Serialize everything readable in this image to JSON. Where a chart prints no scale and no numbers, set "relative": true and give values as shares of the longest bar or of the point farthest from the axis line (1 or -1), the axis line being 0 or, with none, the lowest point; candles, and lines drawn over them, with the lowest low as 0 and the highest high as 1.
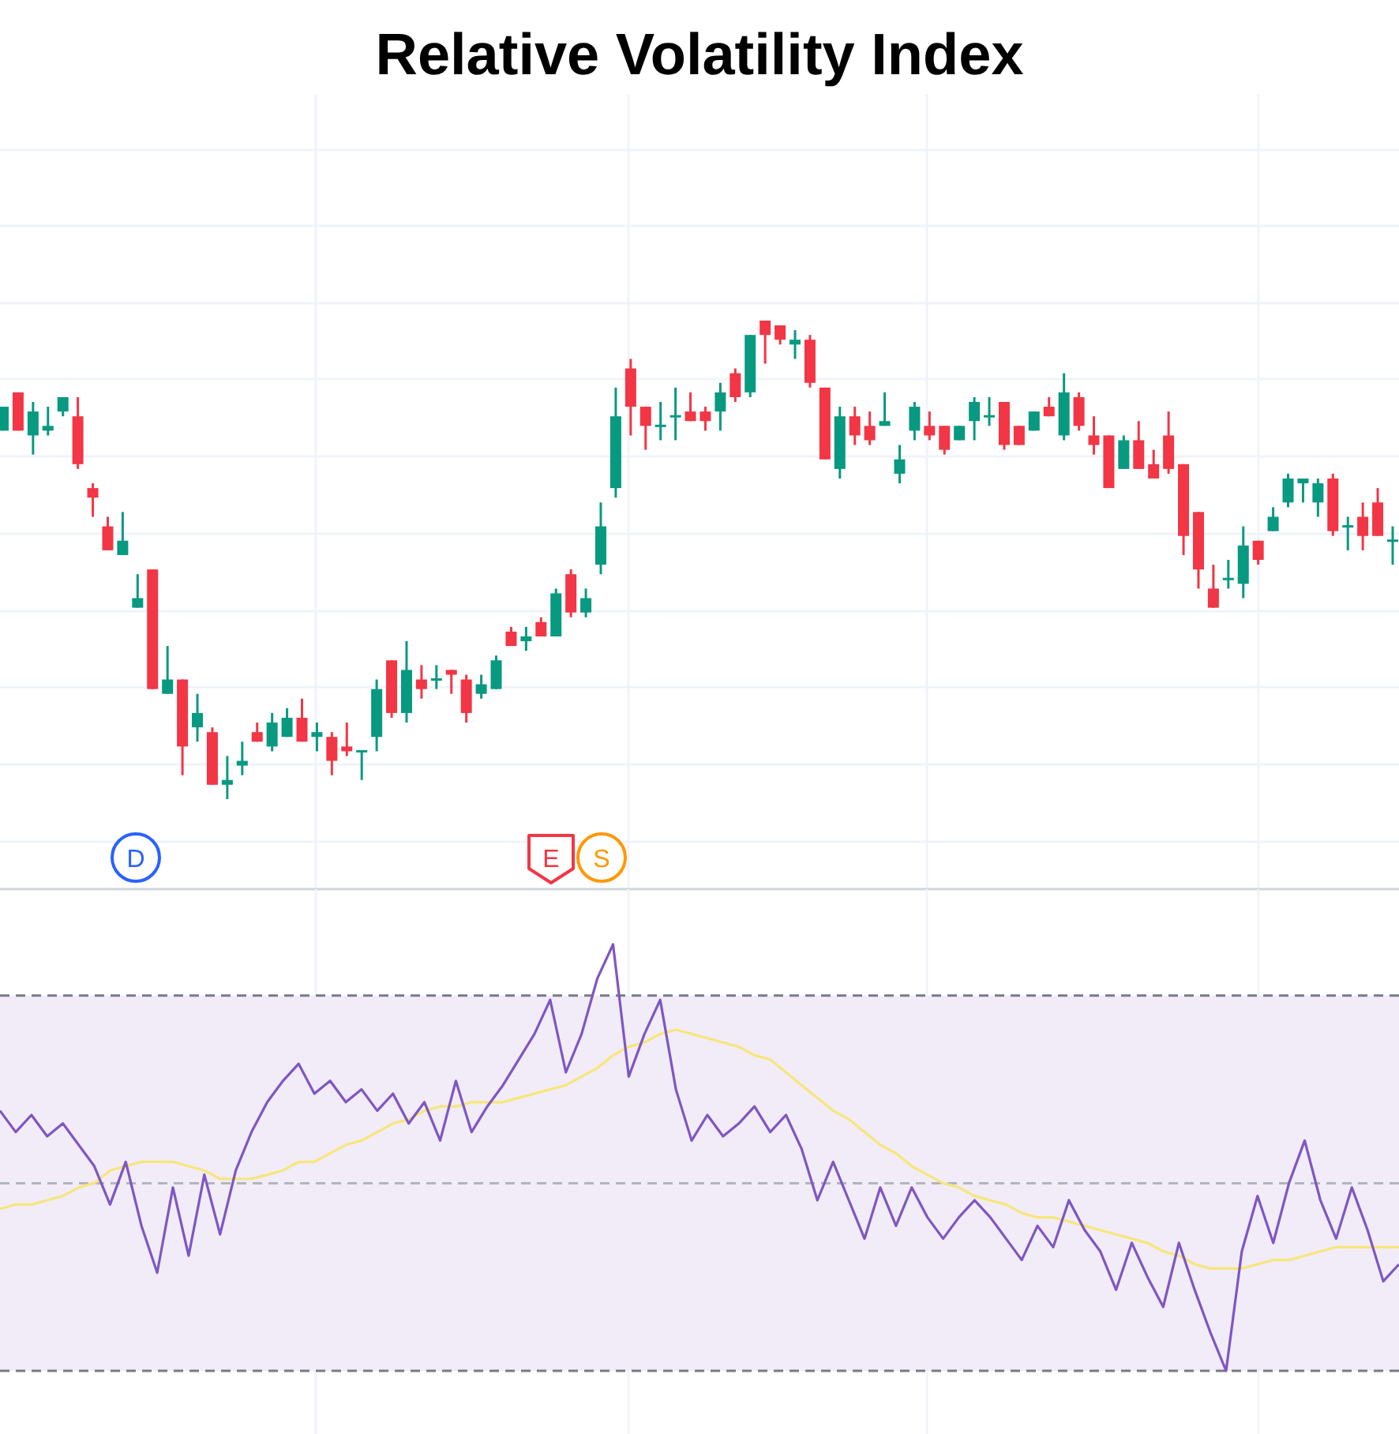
{
  "chart_data": [
    {
      "type": "candlestick",
      "title": "Relative Volatility Index",
      "relative": true,
      "grid": true,
      "annotations": [
        "D",
        "E",
        "S"
      ],
      "categories": [
        null,
        null,
        null,
        null,
        null,
        null,
        null,
        null,
        null,
        null,
        null,
        null,
        null,
        null,
        null,
        null,
        null,
        null,
        null,
        null,
        null,
        null,
        null,
        null,
        null,
        null,
        null,
        null,
        null,
        null,
        null,
        null,
        null,
        null,
        null,
        null,
        null,
        null,
        null,
        null,
        null,
        null,
        null,
        null,
        null,
        null,
        null,
        null,
        null,
        null,
        null,
        null,
        null,
        null,
        null,
        null,
        null,
        null,
        null,
        null,
        null,
        null,
        null,
        null,
        null,
        null,
        null,
        null,
        null,
        null,
        null,
        null,
        null,
        null,
        null,
        null,
        null,
        null,
        null,
        null,
        null,
        null,
        null,
        null,
        null,
        null,
        null,
        null,
        null,
        null,
        null,
        null,
        null,
        null
      ],
      "ohlc": [
        [
          0.77,
          0.82,
          0.77,
          0.82
        ],
        [
          0.85,
          0.85,
          0.77,
          0.77
        ],
        [
          0.76,
          0.83,
          0.72,
          0.81
        ],
        [
          0.77,
          0.82,
          0.76,
          0.78
        ],
        [
          0.81,
          0.84,
          0.8,
          0.84
        ],
        [
          0.8,
          0.84,
          0.69,
          0.7
        ],
        [
          0.65,
          0.66,
          0.59,
          0.63
        ],
        [
          0.57,
          0.59,
          0.52,
          0.52
        ],
        [
          0.51,
          0.6,
          0.51,
          0.54
        ],
        [
          0.4,
          0.47,
          0.4,
          0.42
        ],
        [
          0.48,
          0.48,
          0.23,
          0.23
        ],
        [
          0.22,
          0.32,
          0.22,
          0.25
        ],
        [
          0.25,
          0.25,
          0.05,
          0.11
        ],
        [
          0.15,
          0.22,
          0.12,
          0.18
        ],
        [
          0.14,
          0.15,
          0.03,
          0.03
        ],
        [
          0.03,
          0.09,
          0,
          0.04
        ],
        [
          0.07,
          0.12,
          0.05,
          0.08
        ],
        [
          0.14,
          0.16,
          0.12,
          0.12
        ],
        [
          0.11,
          0.18,
          0.1,
          0.16
        ],
        [
          0.13,
          0.19,
          0.13,
          0.17
        ],
        [
          0.17,
          0.21,
          0.12,
          0.12
        ],
        [
          0.13,
          0.16,
          0.1,
          0.14
        ],
        [
          0.13,
          0.14,
          0.05,
          0.08
        ],
        [
          0.11,
          0.16,
          0.09,
          0.1
        ],
        [
          0.1,
          0.1,
          0.04,
          0.1
        ],
        [
          0.13,
          0.25,
          0.1,
          0.23
        ],
        [
          0.29,
          0.29,
          0.17,
          0.18
        ],
        [
          0.18,
          0.33,
          0.16,
          0.27
        ],
        [
          0.25,
          0.28,
          0.21,
          0.23
        ],
        [
          0.25,
          0.28,
          0.23,
          0.25
        ],
        [
          0.27,
          0.27,
          0.22,
          0.26
        ],
        [
          0.25,
          0.26,
          0.16,
          0.18
        ],
        [
          0.22,
          0.26,
          0.21,
          0.24
        ],
        [
          0.23,
          0.3,
          0.23,
          0.29
        ],
        [
          0.35,
          0.36,
          0.32,
          0.32
        ],
        [
          0.33,
          0.36,
          0.31,
          0.34
        ],
        [
          0.37,
          0.38,
          0.34,
          0.34
        ],
        [
          0.34,
          0.44,
          0.34,
          0.43
        ],
        [
          0.47,
          0.48,
          0.38,
          0.39
        ],
        [
          0.39,
          0.44,
          0.38,
          0.42
        ],
        [
          0.49,
          0.62,
          0.47,
          0.57
        ],
        [
          0.65,
          0.86,
          0.63,
          0.8
        ],
        [
          0.9,
          0.92,
          0.76,
          0.82
        ],
        [
          0.82,
          0.82,
          0.73,
          0.78
        ],
        [
          0.78,
          0.83,
          0.75,
          0.78
        ],
        [
          0.8,
          0.86,
          0.75,
          0.8
        ],
        [
          0.81,
          0.85,
          0.79,
          0.79
        ],
        [
          0.81,
          0.82,
          0.77,
          0.79
        ],
        [
          0.81,
          0.87,
          0.77,
          0.85
        ],
        [
          0.89,
          0.9,
          0.83,
          0.84
        ],
        [
          0.85,
          0.97,
          0.84,
          0.97
        ],
        [
          1,
          1,
          0.91,
          0.97
        ],
        [
          0.99,
          0.99,
          0.95,
          0.96
        ],
        [
          0.95,
          0.98,
          0.92,
          0.96
        ],
        [
          0.96,
          0.97,
          0.86,
          0.87
        ],
        [
          0.86,
          0.86,
          0.71,
          0.71
        ],
        [
          0.69,
          0.82,
          0.67,
          0.8
        ],
        [
          0.8,
          0.82,
          0.74,
          0.76
        ],
        [
          0.78,
          0.81,
          0.74,
          0.75
        ],
        [
          0.78,
          0.85,
          0.78,
          0.79
        ],
        [
          0.68,
          0.74,
          0.66,
          0.71
        ],
        [
          0.77,
          0.83,
          0.75,
          0.82
        ],
        [
          0.78,
          0.81,
          0.75,
          0.76
        ],
        [
          0.78,
          0.78,
          0.72,
          0.73
        ],
        [
          0.75,
          0.78,
          0.75,
          0.78
        ],
        [
          0.79,
          0.84,
          0.75,
          0.83
        ],
        [
          0.8,
          0.84,
          0.78,
          0.8
        ],
        [
          0.83,
          0.83,
          0.73,
          0.74
        ],
        [
          0.78,
          0.78,
          0.74,
          0.74
        ],
        [
          0.77,
          0.81,
          0.77,
          0.81
        ],
        [
          0.82,
          0.84,
          0.8,
          0.8
        ],
        [
          0.76,
          0.89,
          0.75,
          0.85
        ],
        [
          0.84,
          0.85,
          0.77,
          0.78
        ],
        [
          0.76,
          0.8,
          0.72,
          0.74
        ],
        [
          0.76,
          0.76,
          0.65,
          0.65
        ],
        [
          0.69,
          0.76,
          0.69,
          0.75
        ],
        [
          0.75,
          0.79,
          0.69,
          0.69
        ],
        [
          0.7,
          0.73,
          0.67,
          0.67
        ],
        [
          0.76,
          0.81,
          0.68,
          0.69
        ],
        [
          0.7,
          0.7,
          0.51,
          0.55
        ],
        [
          0.6,
          0.6,
          0.44,
          0.48
        ],
        [
          0.44,
          0.49,
          0.4,
          0.4
        ],
        [
          0.46,
          0.5,
          0.44,
          0.46
        ],
        [
          0.45,
          0.57,
          0.42,
          0.53
        ],
        [
          0.54,
          0.54,
          0.49,
          0.5
        ],
        [
          0.56,
          0.61,
          0.56,
          0.59
        ],
        [
          0.62,
          0.68,
          0.61,
          0.67
        ],
        [
          0.66,
          0.67,
          0.62,
          0.67
        ],
        [
          0.62,
          0.67,
          0.59,
          0.66
        ],
        [
          0.67,
          0.68,
          0.55,
          0.56
        ],
        [
          0.57,
          0.59,
          0.52,
          0.57
        ],
        [
          0.59,
          0.62,
          0.52,
          0.55
        ],
        [
          0.62,
          0.65,
          0.55,
          0.55
        ],
        [
          0.54,
          0.57,
          0.49,
          0.54
        ]
      ]
    },
    {
      "type": "line",
      "relative": true,
      "grid": true,
      "line_style": "solid",
      "marker": "none",
      "categories": [
        null,
        null,
        null,
        null,
        null,
        null,
        null,
        null,
        null,
        null,
        null,
        null,
        null,
        null,
        null,
        null,
        null,
        null,
        null,
        null,
        null,
        null,
        null,
        null,
        null,
        null,
        null,
        null,
        null,
        null,
        null,
        null,
        null,
        null,
        null,
        null,
        null,
        null,
        null,
        null,
        null,
        null,
        null,
        null,
        null,
        null,
        null,
        null,
        null,
        null,
        null,
        null,
        null,
        null,
        null,
        null,
        null,
        null,
        null,
        null,
        null,
        null,
        null,
        null,
        null,
        null,
        null,
        null,
        null,
        null,
        null,
        null,
        null,
        null,
        null,
        null,
        null,
        null,
        null,
        null,
        null,
        null,
        null,
        null,
        null,
        null,
        null,
        null,
        null,
        null
      ],
      "bands": [
        {
          "axis": "y",
          "from": 0,
          "to": 0.88,
          "color": "#f1ecf8"
        }
      ],
      "ref_lines": [
        {
          "axis": "y",
          "value": 0.88,
          "color": "#787b86",
          "line_style": "dashed"
        },
        {
          "axis": "y",
          "value": 0.44,
          "color": "#b2b5be",
          "line_style": "dashed"
        },
        {
          "axis": "y",
          "value": 0,
          "color": "#787b86",
          "line_style": "dashed"
        }
      ],
      "series": [
        {
          "color": "#7e57c2",
          "values": [
            0.61,
            0.56,
            0.6,
            0.55,
            0.58,
            0.53,
            0.48,
            0.39,
            0.49,
            0.34,
            0.23,
            0.43,
            0.27,
            0.46,
            0.32,
            0.47,
            0.56,
            0.63,
            0.68,
            0.72,
            0.65,
            0.68,
            0.63,
            0.66,
            0.61,
            0.65,
            0.58,
            0.63,
            0.54,
            0.68,
            0.56,
            0.62,
            0.67,
            0.73,
            0.79,
            0.87,
            0.7,
            0.79,
            0.92,
            1,
            0.69,
            0.79,
            0.87,
            0.66,
            0.54,
            0.6,
            0.55,
            0.58,
            0.62,
            0.56,
            0.6,
            0.52,
            0.4,
            0.49,
            0.4,
            0.31,
            0.43,
            0.34,
            0.43,
            0.36,
            0.31,
            0.36,
            0.4,
            0.36,
            0.31,
            0.26,
            0.34,
            0.29,
            0.4,
            0.33,
            0.28,
            0.19,
            0.3,
            0.22,
            0.15,
            0.3,
            0.19,
            0.09,
            0,
            0.28,
            0.41,
            0.3,
            0.44,
            0.54,
            0.4,
            0.31,
            0.43,
            0.33,
            0.21,
            0.25
          ]
        },
        {
          "color": "#f7e67a",
          "values": [
            0.38,
            0.39,
            0.39,
            0.4,
            0.41,
            0.43,
            0.44,
            0.47,
            0.48,
            0.49,
            0.49,
            0.49,
            0.48,
            0.47,
            0.45,
            0.45,
            0.45,
            0.46,
            0.47,
            0.49,
            0.49,
            0.51,
            0.53,
            0.54,
            0.56,
            0.58,
            0.59,
            0.61,
            0.62,
            0.62,
            0.63,
            0.63,
            0.63,
            0.64,
            0.65,
            0.66,
            0.67,
            0.69,
            0.71,
            0.74,
            0.76,
            0.77,
            0.79,
            0.8,
            0.79,
            0.78,
            0.77,
            0.76,
            0.74,
            0.73,
            0.7,
            0.67,
            0.64,
            0.61,
            0.59,
            0.56,
            0.53,
            0.51,
            0.48,
            0.46,
            0.44,
            0.43,
            0.41,
            0.4,
            0.39,
            0.37,
            0.36,
            0.36,
            0.35,
            0.34,
            0.33,
            0.32,
            0.31,
            0.3,
            0.28,
            0.27,
            0.25,
            0.24,
            0.24,
            0.24,
            0.25,
            0.26,
            0.26,
            0.27,
            0.28,
            0.29,
            0.29,
            0.29,
            0.29,
            0.29
          ]
        }
      ]
    }
  ]
}
